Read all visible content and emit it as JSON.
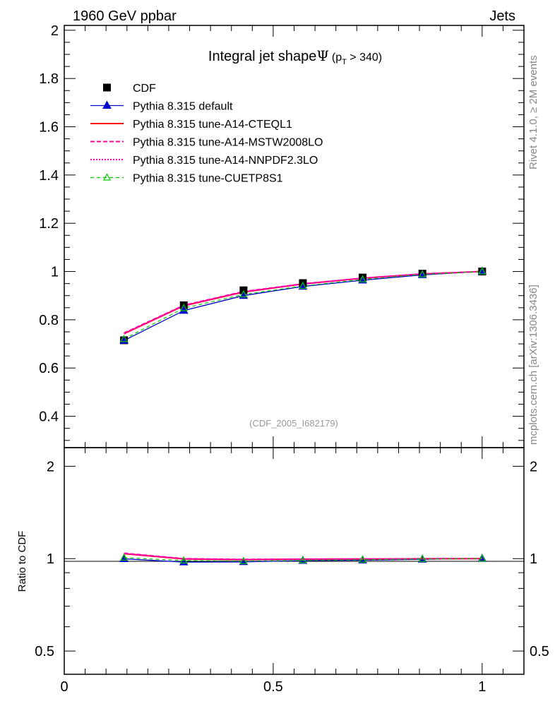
{
  "header": {
    "left": "1960 GeV ppbar",
    "right": "Jets"
  },
  "side": {
    "rivet": "Rivet 4.1.0, ≥ 2M events",
    "mcplots": "mcplots.cern.ch [arXiv:1306.3436]"
  },
  "chart_data": {
    "type": "line",
    "title": "Integral jet shapeΨ (p_T > 340)",
    "title_parts": {
      "main": "Integral jet shape",
      "psi": "Ψ",
      "paren_open": "(p",
      "sub": "T",
      "paren_close": " > 340)"
    },
    "analysis_id": "(CDF_2005_I682179)",
    "x": [
      0.143,
      0.286,
      0.429,
      0.571,
      0.714,
      0.857,
      1.0
    ],
    "xlim": [
      0,
      1.1
    ],
    "x_ticks": [
      {
        "v": 0,
        "label": "0"
      },
      {
        "v": 0.5,
        "label": "0.5"
      },
      {
        "v": 1,
        "label": "1"
      }
    ],
    "main": {
      "ylim": [
        0.27,
        2.02
      ],
      "y_ticks": [
        {
          "v": 0.4,
          "label": "0.4"
        },
        {
          "v": 0.6,
          "label": "0.6"
        },
        {
          "v": 0.8,
          "label": "0.8"
        },
        {
          "v": 1.0,
          "label": "1"
        },
        {
          "v": 1.2,
          "label": "1.2"
        },
        {
          "v": 1.4,
          "label": "1.4"
        },
        {
          "v": 1.6,
          "label": "1.6"
        },
        {
          "v": 1.8,
          "label": "1.8"
        },
        {
          "v": 2.0,
          "label": "2"
        }
      ]
    },
    "ratio": {
      "ylabel": "Ratio to CDF",
      "ylim": [
        0.42,
        2.3
      ],
      "y_ticks": [
        {
          "v": 0.5,
          "label": "0.5"
        },
        {
          "v": 1.0,
          "label": "1"
        },
        {
          "v": 2.0,
          "label": "2"
        }
      ]
    },
    "data": {
      "name": "CDF",
      "values": [
        0.715,
        0.86,
        0.922,
        0.952,
        0.975,
        0.991,
        1.0
      ]
    },
    "series": [
      {
        "name": "Pythia 8.315 default",
        "color": "#0000cc",
        "dash": "",
        "width": 1.3,
        "marker": "triangle-filled",
        "values": [
          0.714,
          0.838,
          0.9,
          0.938,
          0.964,
          0.986,
          1.0
        ]
      },
      {
        "name": "Pythia 8.315 tune-A14-CTEQL1",
        "color": "#ff0000",
        "dash": "",
        "width": 2,
        "marker": "none",
        "values": [
          0.742,
          0.858,
          0.915,
          0.948,
          0.972,
          0.99,
          1.0
        ]
      },
      {
        "name": "Pythia 8.315 tune-A14-MSTW2008LO",
        "color": "#ff0099",
        "dash": "6,3",
        "width": 2,
        "marker": "none",
        "values": [
          0.745,
          0.86,
          0.917,
          0.949,
          0.973,
          0.99,
          1.0
        ]
      },
      {
        "name": "Pythia 8.315 tune-A14-NNPDF2.3LO",
        "color": "#ff00cc",
        "dash": "2,2",
        "width": 2,
        "marker": "none",
        "values": [
          0.743,
          0.859,
          0.916,
          0.948,
          0.972,
          0.99,
          1.0
        ]
      },
      {
        "name": "Pythia 8.315 tune-CUETP8S1",
        "color": "#00cc00",
        "dash": "5,4",
        "width": 1.2,
        "marker": "triangle-open",
        "values": [
          0.72,
          0.848,
          0.905,
          0.94,
          0.967,
          0.988,
          1.0
        ]
      }
    ]
  }
}
